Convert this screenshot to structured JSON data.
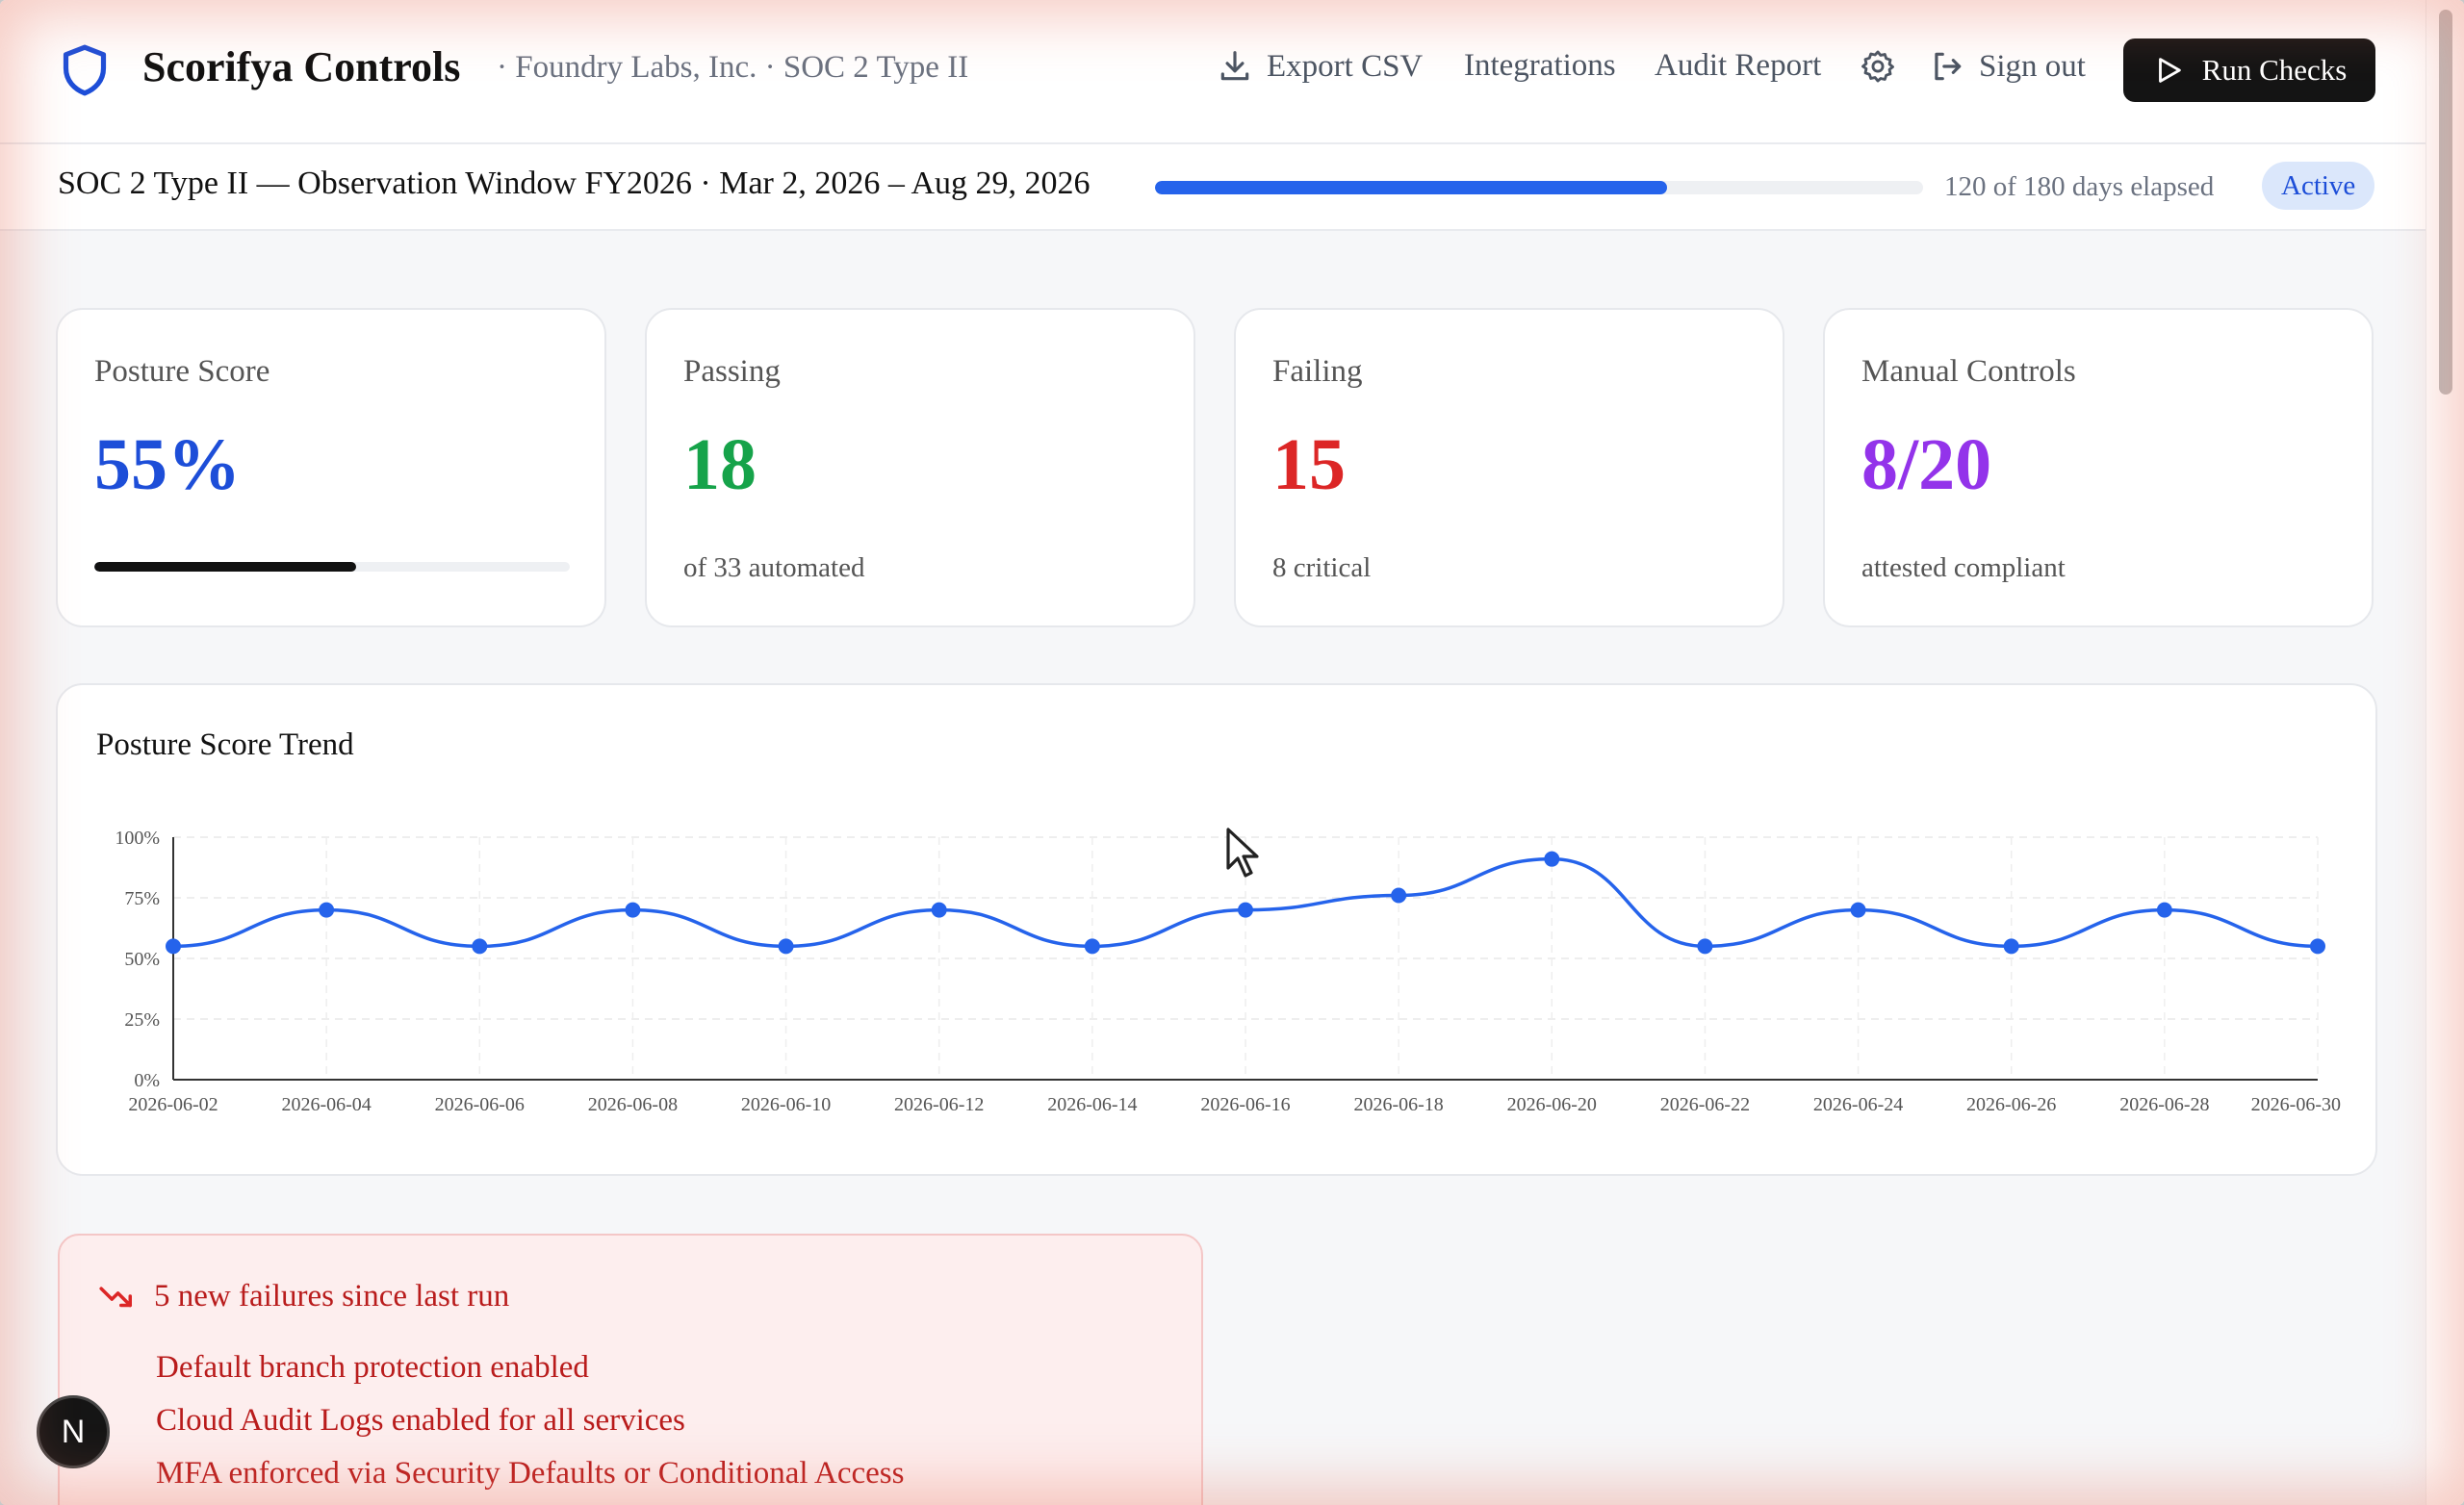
{
  "header": {
    "brand_name": "Scorifya Controls",
    "brand_sub": "· Foundry Labs, Inc. · SOC 2 Type II",
    "nav": {
      "export": "Export CSV",
      "integrations": "Integrations",
      "audit": "Audit Report",
      "signout": "Sign out"
    },
    "run_label": "Run Checks",
    "icons": [
      "shield-icon",
      "download-icon",
      "gear-icon",
      "sign-out-icon",
      "play-icon"
    ]
  },
  "observation": {
    "title": "SOC 2 Type II — Observation Window FY2026 · Mar 2, 2026 – Aug 29, 2026",
    "progress_fraction": 0.667,
    "elapsed": "120 of 180 days elapsed",
    "status": "Active"
  },
  "cards": {
    "posture": {
      "label": "Posture Score",
      "value": "55%",
      "progress_fraction": 0.55,
      "color": "#1d4ed8"
    },
    "passing": {
      "label": "Passing",
      "value": "18",
      "sub": "of 33 automated",
      "color": "#16a34a"
    },
    "failing": {
      "label": "Failing",
      "value": "15",
      "sub": "8 critical",
      "color": "#dc2626"
    },
    "manual": {
      "label": "Manual Controls",
      "value": "8/20",
      "sub": "attested compliant",
      "color": "#9333ea"
    }
  },
  "chart_data": {
    "type": "line",
    "title": "Posture Score Trend",
    "x": [
      "2026-06-02",
      "2026-06-04",
      "2026-06-06",
      "2026-06-08",
      "2026-06-10",
      "2026-06-12",
      "2026-06-14",
      "2026-06-16",
      "2026-06-18",
      "2026-06-20",
      "2026-06-22",
      "2026-06-24",
      "2026-06-26",
      "2026-06-28",
      "2026-06-30"
    ],
    "values": [
      55,
      70,
      55,
      70,
      55,
      70,
      55,
      70,
      76,
      91,
      55,
      70,
      55,
      70,
      55
    ],
    "ylim": [
      0,
      100
    ],
    "y_ticks": [
      "0%",
      "25%",
      "50%",
      "75%",
      "100%"
    ],
    "y_tick_values": [
      0,
      25,
      50,
      75,
      100
    ],
    "grid": true,
    "color": "#2563eb"
  },
  "alert": {
    "title": "5 new failures since last run",
    "items": [
      "Default branch protection enabled",
      "Cloud Audit Logs enabled for all services",
      "MFA enforced via Security Defaults or Conditional Access"
    ]
  },
  "overlay": {
    "badge": "N"
  }
}
